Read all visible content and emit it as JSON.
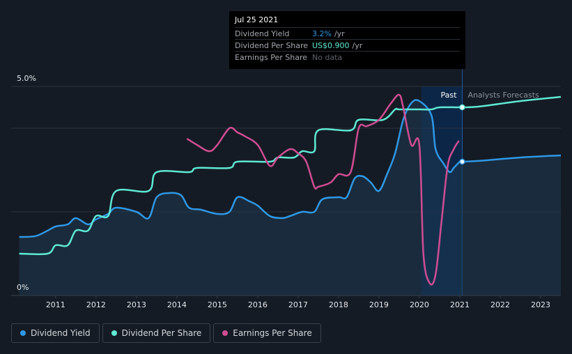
{
  "tooltip": {
    "date": "Jul 25 2021",
    "rows": [
      {
        "label": "Dividend Yield",
        "value": "3.2%",
        "unit": "/yr"
      },
      {
        "label": "Dividend Per Share",
        "value": "US$0.900",
        "unit": "/yr"
      },
      {
        "label": "Earnings Per Share",
        "value": "No data",
        "unit": ""
      }
    ]
  },
  "legend": [
    {
      "label": "Dividend Yield",
      "color": "#2f98e6"
    },
    {
      "label": "Dividend Per Share",
      "color": "#5ee9d4"
    },
    {
      "label": "Earnings Per Share",
      "color": "#cf4d93"
    }
  ],
  "regions": {
    "past": "Past",
    "forecast": "Analysts Forecasts"
  },
  "colors": {
    "yield": "#2f98e6",
    "dps": "#5ee9d4",
    "eps": "#cf4d93",
    "background": "#151b24",
    "highlight": "#0c2647"
  },
  "chart_data": {
    "type": "line",
    "x_ticks": [
      "2011",
      "2012",
      "2013",
      "2014",
      "2015",
      "2016",
      "2017",
      "2018",
      "2019",
      "2020",
      "2021",
      "2022",
      "2023"
    ],
    "y_ticks": [
      "0%",
      "5.0%"
    ],
    "xlim": [
      2010.4,
      2024.0
    ],
    "ylim": [
      0,
      5.0
    ],
    "highlight_range": [
      2020.55,
      2021.56
    ],
    "past_forecast_split": 2021.56,
    "series": [
      {
        "name": "Dividend Yield",
        "x": [
          2010.6,
          2011.0,
          2011.3,
          2011.5,
          2011.8,
          2012.0,
          2012.3,
          2012.5,
          2012.8,
          2013.0,
          2013.5,
          2013.8,
          2014.0,
          2014.3,
          2014.6,
          2014.8,
          2015.1,
          2015.5,
          2015.8,
          2016.0,
          2016.3,
          2016.5,
          2016.8,
          2017.1,
          2017.3,
          2017.6,
          2017.9,
          2018.1,
          2018.5,
          2018.7,
          2018.9,
          2019.1,
          2019.3,
          2019.5,
          2019.7,
          2019.9,
          2020.1,
          2020.3,
          2020.5,
          2020.8,
          2020.9,
          2021.1,
          2021.25,
          2021.35,
          2021.5,
          2021.56,
          2022.0,
          2023.0,
          2024.0
        ],
        "y": [
          1.4,
          1.42,
          1.55,
          1.65,
          1.7,
          1.85,
          1.7,
          1.82,
          1.95,
          2.1,
          2.0,
          1.85,
          2.35,
          2.45,
          2.4,
          2.1,
          2.05,
          1.95,
          2.0,
          2.35,
          2.25,
          2.15,
          1.9,
          1.85,
          1.9,
          2.0,
          2.0,
          2.3,
          2.35,
          2.35,
          2.8,
          2.85,
          2.7,
          2.5,
          2.9,
          3.4,
          4.2,
          4.6,
          4.65,
          4.3,
          3.5,
          3.15,
          2.95,
          3.05,
          3.2,
          3.2,
          3.22,
          3.3,
          3.35
        ]
      },
      {
        "name": "Dividend Per Share",
        "x": [
          2010.6,
          2011.3,
          2011.5,
          2011.8,
          2012.0,
          2012.3,
          2012.5,
          2012.8,
          2013.0,
          2013.8,
          2014.0,
          2014.8,
          2015.0,
          2015.8,
          2016.0,
          2016.8,
          2017.0,
          2017.4,
          2017.6,
          2017.9,
          2018.0,
          2018.8,
          2019.0,
          2019.6,
          2019.9,
          2020.0,
          2020.5,
          2020.8,
          2021.0,
          2021.56,
          2022.0,
          2023.0,
          2024.0
        ],
        "y": [
          1.0,
          1.0,
          1.2,
          1.2,
          1.55,
          1.55,
          1.9,
          1.9,
          2.5,
          2.5,
          2.95,
          2.95,
          3.05,
          3.05,
          3.2,
          3.2,
          3.3,
          3.3,
          3.45,
          3.45,
          3.95,
          3.95,
          4.2,
          4.2,
          4.45,
          4.45,
          4.45,
          4.45,
          4.5,
          4.5,
          4.52,
          4.65,
          4.75
        ]
      },
      {
        "name": "Earnings Per Share",
        "x": [
          2014.75,
          2015.0,
          2015.3,
          2015.5,
          2015.8,
          2016.0,
          2016.2,
          2016.5,
          2016.8,
          2017.0,
          2017.3,
          2017.5,
          2017.7,
          2017.9,
          2018.0,
          2018.3,
          2018.5,
          2018.8,
          2019.0,
          2019.2,
          2019.5,
          2019.8,
          2020.0,
          2020.1,
          2020.3,
          2020.5,
          2020.6,
          2020.75,
          2020.9,
          2021.05,
          2021.2,
          2021.35,
          2021.48
        ],
        "y": [
          3.75,
          3.6,
          3.45,
          3.6,
          4.0,
          3.9,
          3.8,
          3.6,
          3.1,
          3.3,
          3.5,
          3.4,
          3.2,
          2.6,
          2.6,
          2.7,
          2.9,
          2.95,
          4.0,
          4.05,
          4.2,
          4.6,
          4.8,
          4.5,
          3.6,
          3.6,
          1.0,
          0.3,
          0.5,
          1.8,
          3.1,
          3.5,
          3.7
        ]
      }
    ]
  }
}
